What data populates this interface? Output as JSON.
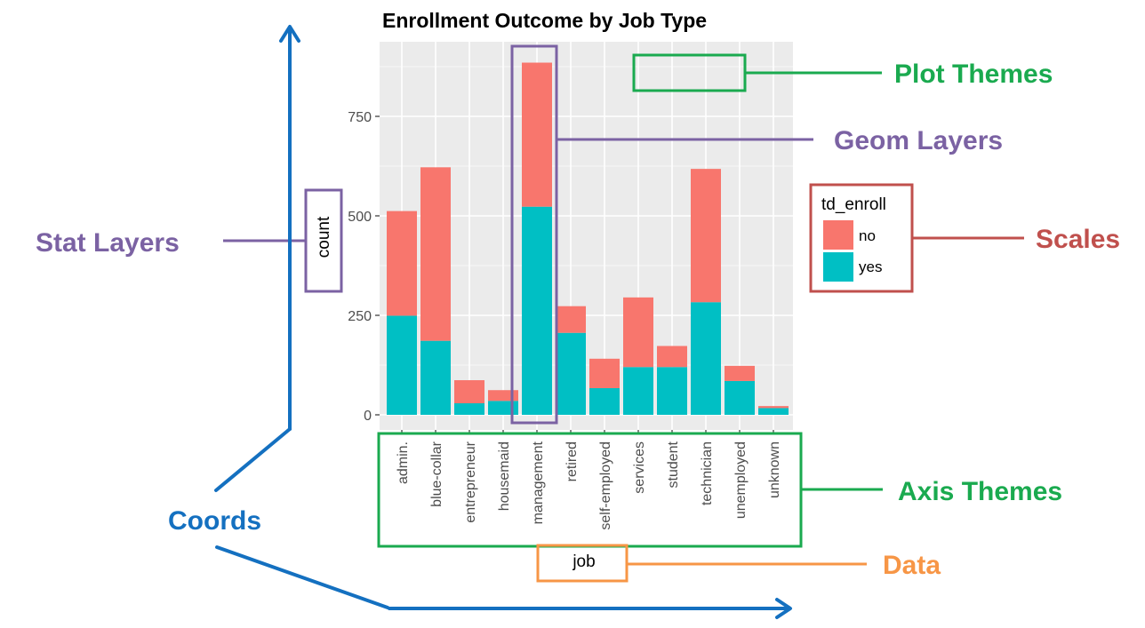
{
  "chart_data": {
    "type": "bar",
    "stacked": true,
    "title": "Enrollment Outcome by Job Type",
    "xlabel": "job",
    "ylabel": "count",
    "ylim": [
      0,
      930
    ],
    "yticks": [
      0,
      250,
      500,
      750
    ],
    "categories": [
      "admin.",
      "blue-collar",
      "entrepreneur",
      "housemaid",
      "management",
      "retired",
      "self-employed",
      "services",
      "student",
      "technician",
      "unemployed",
      "unknown"
    ],
    "series": [
      {
        "name": "yes",
        "color": "#00BFC4",
        "values": [
          249,
          186,
          29,
          35,
          523,
          206,
          67,
          120,
          120,
          283,
          85,
          17
        ]
      },
      {
        "name": "no",
        "color": "#F8766D",
        "values": [
          263,
          436,
          58,
          27,
          362,
          67,
          74,
          175,
          53,
          335,
          38,
          5
        ]
      }
    ],
    "legend": {
      "title": "td_enroll",
      "position": "right",
      "entries": [
        {
          "label": "no",
          "color": "#F8766D"
        },
        {
          "label": "yes",
          "color": "#00BFC4"
        }
      ]
    },
    "grid": true
  },
  "annotations": {
    "plot_themes": "Plot Themes",
    "geom_layers": "Geom Layers",
    "scales": "Scales",
    "stat_layers": "Stat Layers",
    "axis_themes": "Axis Themes",
    "coords": "Coords",
    "data": "Data"
  },
  "colors": {
    "blue": "#1470C0",
    "purple": "#7B62A3",
    "green": "#1AAA4F",
    "red": "#C0504D",
    "orange": "#F79646",
    "panel": "#EBEBEB"
  }
}
